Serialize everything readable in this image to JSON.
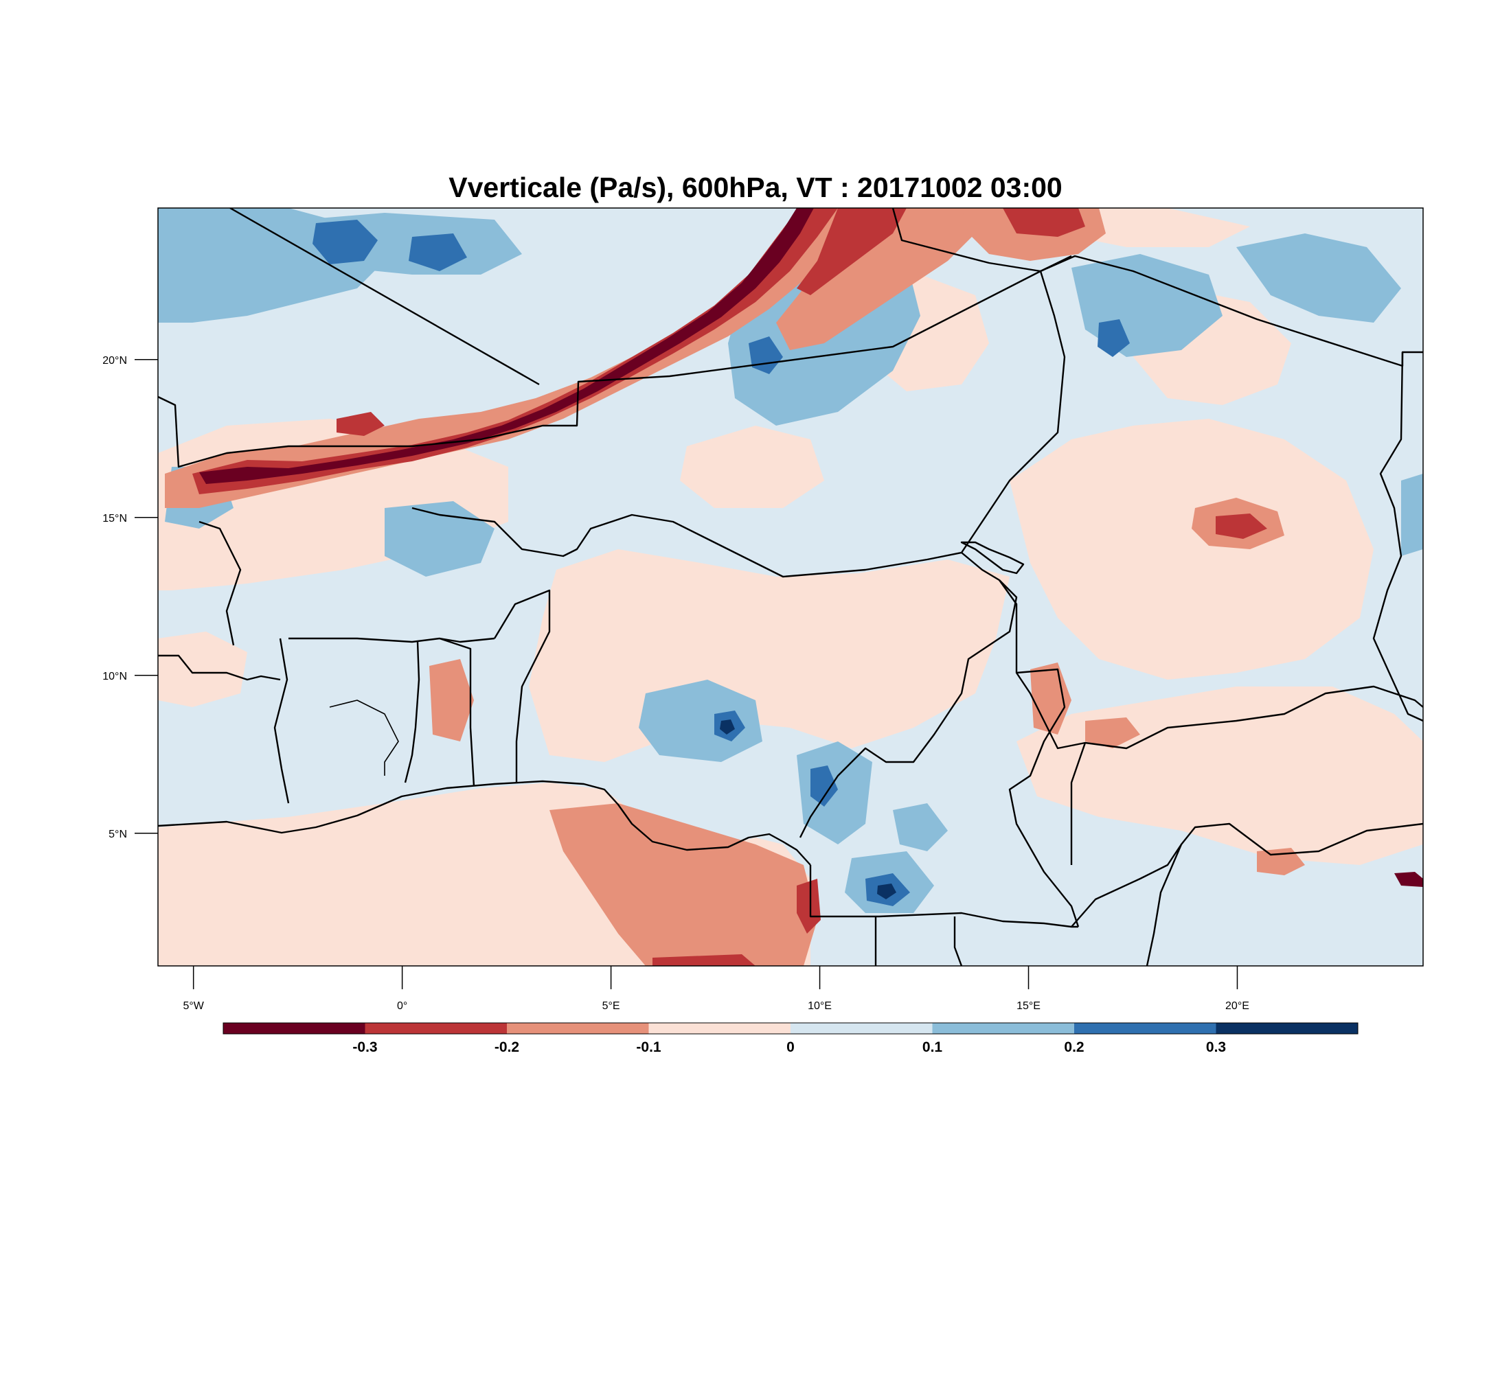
{
  "title": "Vverticale (Pa/s), 600hPa, VT : 20171002  03:00",
  "map": {
    "extent": {
      "lon_min": -5.85,
      "lon_max": 24.45,
      "lat_min": 0.8,
      "lat_max": 24.8
    },
    "lat_ticks": [
      {
        "value": 20,
        "label": "20°N"
      },
      {
        "value": 15,
        "label": "15°N"
      },
      {
        "value": 10,
        "label": "10°N"
      },
      {
        "value": 5,
        "label": "5°N"
      }
    ],
    "lon_ticks": [
      {
        "value": -5,
        "label": "5°W"
      },
      {
        "value": 0,
        "label": "0°"
      },
      {
        "value": 5,
        "label": "5°E"
      },
      {
        "value": 10,
        "label": "10°E"
      },
      {
        "value": 15,
        "label": "15°E"
      },
      {
        "value": 20,
        "label": "20°E"
      }
    ],
    "background_color": "#dbe9f2"
  },
  "colorbar": {
    "colors": [
      "#6a0021",
      "#bc3537",
      "#e6917a",
      "#fbe1d6",
      "#d6e6f0",
      "#8bbdd9",
      "#2f70b0",
      "#0a3163"
    ],
    "labels": [
      "-0.3",
      "-0.2",
      "-0.1",
      "0",
      "0.1",
      "0.2",
      "0.3"
    ]
  }
}
